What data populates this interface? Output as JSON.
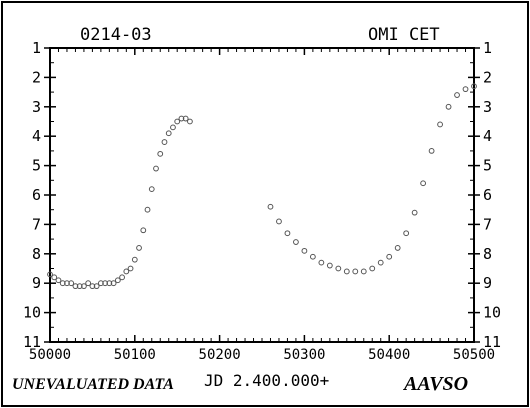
{
  "chart_data": {
    "type": "scatter",
    "designation": "0214-03",
    "star_name": "OMI CET",
    "xlabel": "JD 2.400.000+",
    "footer_left": "UNEVALUATED DATA",
    "footer_right": "AAVSO",
    "xlim": [
      50000,
      50500
    ],
    "ylim": [
      1,
      11
    ],
    "y_inverted": true,
    "x_ticks": [
      "50000",
      "50100",
      "50200",
      "50300",
      "50400",
      "50500"
    ],
    "y_ticks": [
      "1",
      "2",
      "3",
      "4",
      "5",
      "6",
      "7",
      "8",
      "9",
      "10",
      "11"
    ],
    "grid": false,
    "series": [
      {
        "x": [
          50000,
          50005,
          50010,
          50015,
          50020,
          50025,
          50030,
          50035,
          50040,
          50045,
          50050,
          50055,
          50060,
          50065,
          50070,
          50075,
          50080,
          50085,
          50090,
          50095,
          50100,
          50105,
          50110,
          50115,
          50120,
          50125,
          50130,
          50135,
          50140,
          50145,
          50150,
          50155,
          50160,
          50165,
          50260,
          50270,
          50280,
          50290,
          50300,
          50310,
          50320,
          50330,
          50340,
          50350,
          50360,
          50370,
          50380,
          50390,
          50400,
          50410,
          50420,
          50430,
          50440,
          50450,
          50460,
          50470,
          50480,
          50490,
          50500
        ],
        "y": [
          8.7,
          8.8,
          8.9,
          9.0,
          9.0,
          9.0,
          9.1,
          9.1,
          9.1,
          9.0,
          9.1,
          9.1,
          9.0,
          9.0,
          9.0,
          9.0,
          8.9,
          8.8,
          8.6,
          8.5,
          8.2,
          7.8,
          7.2,
          6.5,
          5.8,
          5.1,
          4.6,
          4.2,
          3.9,
          3.7,
          3.5,
          3.4,
          3.4,
          3.5,
          6.4,
          6.9,
          7.3,
          7.6,
          7.9,
          8.1,
          8.3,
          8.4,
          8.5,
          8.6,
          8.6,
          8.6,
          8.5,
          8.3,
          8.1,
          7.8,
          7.3,
          6.6,
          5.6,
          4.5,
          3.6,
          3.0,
          2.6,
          2.4,
          2.3
        ]
      }
    ]
  }
}
